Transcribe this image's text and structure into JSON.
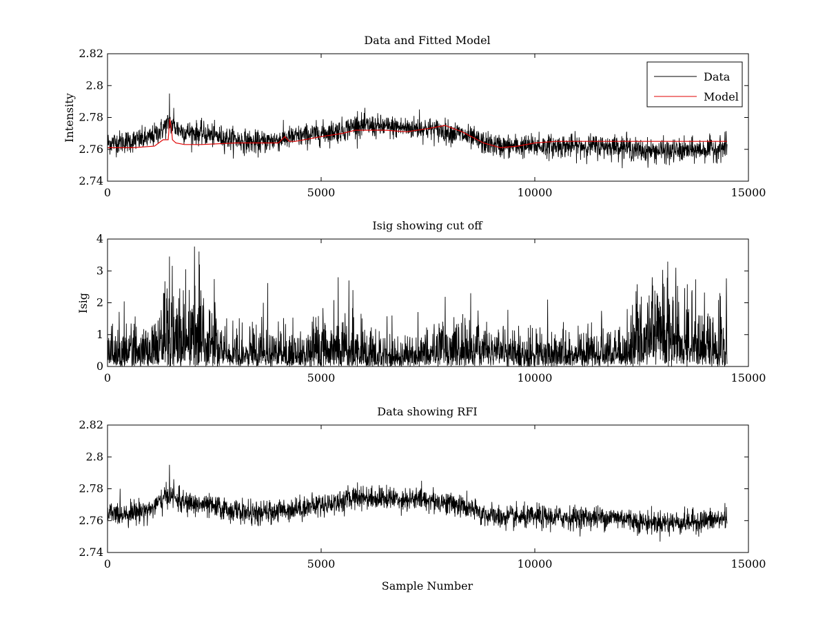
{
  "colors": {
    "data": "#000000",
    "model": "#e00000",
    "axes": "#000000",
    "background": "#ffffff"
  },
  "chart_data": [
    {
      "type": "line",
      "title": "Data and Fitted Model",
      "xlabel": "",
      "ylabel": "Intensity",
      "xlim": [
        0,
        15000
      ],
      "ylim": [
        2.74,
        2.82
      ],
      "xticks": [
        "0",
        "5000",
        "10000",
        "15000"
      ],
      "yticks": [
        "2.74",
        "2.76",
        "2.78",
        "2.8",
        "2.82"
      ],
      "legend_placement": "top-right",
      "legend": [
        "Data",
        "Model"
      ],
      "series": [
        {
          "name": "Data",
          "color": "#000000",
          "style": "noisy",
          "x": [
            0,
            500,
            1000,
            1300,
            1450,
            1550,
            1800,
            2200,
            2800,
            3500,
            4200,
            5000,
            5500,
            5800,
            6500,
            7500,
            8200,
            8800,
            9200,
            10000,
            11000,
            12000,
            12500,
            13000,
            13500,
            14000,
            14500
          ],
          "center": [
            2.764,
            2.765,
            2.767,
            2.773,
            2.777,
            2.774,
            2.771,
            2.77,
            2.767,
            2.764,
            2.767,
            2.77,
            2.772,
            2.775,
            2.774,
            2.773,
            2.77,
            2.764,
            2.762,
            2.762,
            2.762,
            2.762,
            2.759,
            2.759,
            2.759,
            2.76,
            2.761
          ],
          "noise": 0.004,
          "spikes": [
            [
              1450,
              2.795
            ],
            [
              1500,
              2.778
            ],
            [
              1550,
              2.786
            ],
            [
              5850,
              2.784
            ],
            [
              7300,
              2.785
            ],
            [
              10100,
              2.771
            ],
            [
              12150,
              2.771
            ],
            [
              13150,
              2.75
            ],
            [
              14450,
              2.771
            ]
          ]
        },
        {
          "name": "Model",
          "color": "#e00000",
          "style": "line",
          "x": [
            0,
            600,
            1100,
            1300,
            1420,
            1460,
            1500,
            1520,
            1600,
            1800,
            2200,
            3000,
            4000,
            4150,
            4250,
            4400,
            5000,
            5500,
            5800,
            6500,
            7000,
            7500,
            7900,
            8300,
            8800,
            9200,
            9600,
            10000,
            10500,
            11500,
            12500,
            13500,
            14500
          ],
          "y": [
            2.761,
            2.761,
            2.762,
            2.766,
            2.766,
            2.779,
            2.772,
            2.766,
            2.764,
            2.763,
            2.763,
            2.764,
            2.764,
            2.768,
            2.765,
            2.765,
            2.768,
            2.77,
            2.772,
            2.772,
            2.771,
            2.773,
            2.775,
            2.771,
            2.764,
            2.761,
            2.762,
            2.764,
            2.765,
            2.765,
            2.765,
            2.765,
            2.765
          ]
        }
      ]
    },
    {
      "type": "line",
      "title": "Isig showing cut off",
      "xlabel": "",
      "ylabel": "Isig",
      "xlim": [
        0,
        15000
      ],
      "ylim": [
        0,
        4
      ],
      "xticks": [
        "0",
        "5000",
        "10000",
        "15000"
      ],
      "yticks": [
        "0",
        "1",
        "2",
        "3",
        "4"
      ],
      "series": [
        {
          "name": "",
          "color": "#000000",
          "style": "absnoise",
          "x": [
            0,
            1000,
            1200,
            1800,
            2200,
            2600,
            3000,
            4000,
            5000,
            5500,
            6000,
            7000,
            7500,
            8000,
            8500,
            9000,
            10000,
            11000,
            12000,
            12300,
            13000,
            13500,
            14000,
            14500
          ],
          "amp": [
            0.6,
            0.6,
            1.0,
            1.2,
            1.2,
            0.7,
            0.55,
            0.55,
            0.6,
            0.7,
            0.55,
            0.45,
            0.5,
            0.7,
            0.75,
            0.55,
            0.5,
            0.5,
            0.55,
            1.0,
            1.2,
            1.1,
            0.8,
            0.7
          ],
          "spikes": [
            [
              1450,
              3.45
            ],
            [
              2150,
              3.2
            ],
            [
              5400,
              2.8
            ],
            [
              5650,
              2.7
            ],
            [
              13300,
              3.1
            ],
            [
              12750,
              2.8
            ],
            [
              8500,
              2.3
            ],
            [
              3650,
              2.0
            ],
            [
              10300,
              2.1
            ]
          ]
        }
      ]
    },
    {
      "type": "line",
      "title": "Data showing RFI",
      "xlabel": "Sample Number",
      "ylabel": "",
      "xlim": [
        0,
        15000
      ],
      "ylim": [
        2.74,
        2.82
      ],
      "xticks": [
        "0",
        "5000",
        "10000",
        "15000"
      ],
      "yticks": [
        "2.74",
        "2.76",
        "2.78",
        "2.8",
        "2.82"
      ],
      "series": [
        {
          "name": "",
          "color": "#000000",
          "style": "noisy",
          "x": [
            0,
            500,
            1000,
            1300,
            1450,
            1550,
            1800,
            2200,
            2800,
            3500,
            4200,
            5000,
            5500,
            5800,
            6500,
            7500,
            8200,
            8800,
            9200,
            10000,
            11000,
            12000,
            12500,
            13000,
            13500,
            14000,
            14500
          ],
          "center": [
            2.764,
            2.765,
            2.767,
            2.773,
            2.777,
            2.774,
            2.771,
            2.77,
            2.767,
            2.764,
            2.767,
            2.77,
            2.772,
            2.775,
            2.774,
            2.773,
            2.77,
            2.764,
            2.762,
            2.762,
            2.762,
            2.762,
            2.759,
            2.759,
            2.759,
            2.76,
            2.761
          ],
          "noise": 0.004,
          "spikes": [
            [
              1450,
              2.795
            ],
            [
              1550,
              2.786
            ],
            [
              5850,
              2.784
            ],
            [
              7350,
              2.785
            ],
            [
              10100,
              2.771
            ],
            [
              13150,
              2.75
            ],
            [
              14450,
              2.771
            ]
          ]
        }
      ]
    }
  ]
}
